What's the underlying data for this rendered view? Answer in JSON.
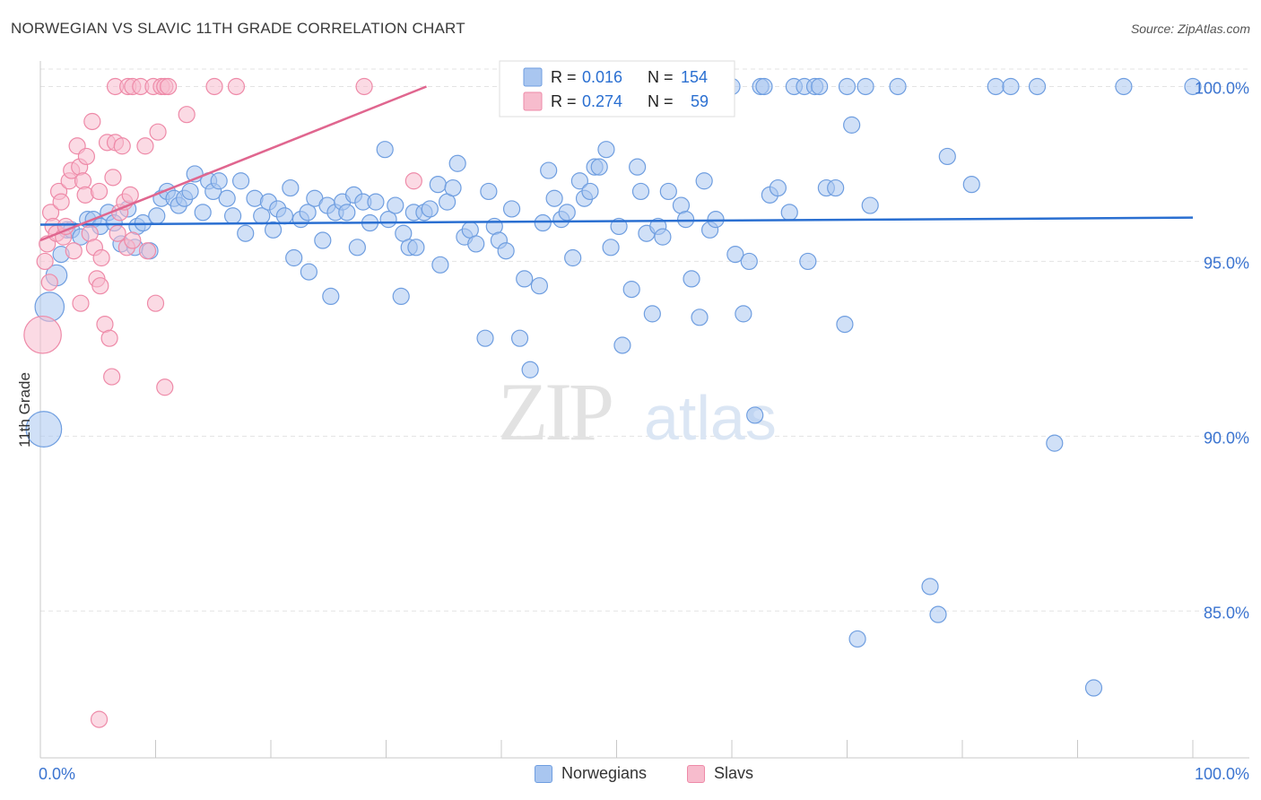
{
  "title": "NORWEGIAN VS SLAVIC 11TH GRADE CORRELATION CHART",
  "source": "Source: ZipAtlas.com",
  "watermark": {
    "zip": "ZIP",
    "atlas": "atlas"
  },
  "colors": {
    "norwegians_fill": "#a9c6f0",
    "norwegians_stroke": "#6f9ee0",
    "norwegians_line": "#2a6fd1",
    "slavs_fill": "#f7bccd",
    "slavs_stroke": "#ee8aa8",
    "slavs_line": "#e0668f",
    "tick_label": "#3b74d0",
    "grid": "#e3e3e3"
  },
  "stats_legend": {
    "rows": [
      {
        "r_label": "R =",
        "r_value": "0.016",
        "n_label": "N =",
        "n_value": "154"
      },
      {
        "r_label": "R =",
        "r_value": "0.274",
        "n_label": "N =",
        "n_value": "59"
      }
    ]
  },
  "legend_bottom": {
    "norwegians": "Norwegians",
    "slavs": "Slavs"
  },
  "chart_data": {
    "type": "scatter",
    "title": "NORWEGIAN VS SLAVIC 11TH GRADE CORRELATION CHART",
    "xlabel": "",
    "ylabel": "11th Grade",
    "xlim": [
      0,
      100
    ],
    "ylim": [
      80.8,
      100.5
    ],
    "x_tick_labels": [
      "0.0%",
      "100.0%"
    ],
    "y_ticks": [
      100,
      95,
      90,
      85
    ],
    "y_tick_labels": [
      "100.0%",
      "95.0%",
      "90.0%",
      "85.0%"
    ],
    "legend_position": "top-center",
    "series": [
      {
        "name": "Norwegians",
        "R": 0.016,
        "N": 154,
        "trend": {
          "x": [
            0,
            100
          ],
          "y": [
            96.05,
            96.25
          ]
        },
        "points": [
          {
            "x": 0.3,
            "y": 90.2,
            "s": 2.2
          },
          {
            "x": 0.8,
            "y": 93.7,
            "s": 1.8
          },
          {
            "x": 1.4,
            "y": 94.6,
            "s": 1.3
          },
          {
            "x": 1.8,
            "y": 95.2
          },
          {
            "x": 2.3,
            "y": 95.9
          },
          {
            "x": 2.7,
            "y": 95.9
          },
          {
            "x": 3.5,
            "y": 95.7
          },
          {
            "x": 4.1,
            "y": 96.2
          },
          {
            "x": 4.6,
            "y": 96.2
          },
          {
            "x": 5.2,
            "y": 96.0
          },
          {
            "x": 5.9,
            "y": 96.4
          },
          {
            "x": 6.4,
            "y": 96.1
          },
          {
            "x": 7.0,
            "y": 95.5
          },
          {
            "x": 7.6,
            "y": 96.5
          },
          {
            "x": 8.2,
            "y": 95.4
          },
          {
            "x": 8.4,
            "y": 96.0
          },
          {
            "x": 8.9,
            "y": 96.1
          },
          {
            "x": 9.5,
            "y": 95.3
          },
          {
            "x": 10.1,
            "y": 96.3
          },
          {
            "x": 10.5,
            "y": 96.8
          },
          {
            "x": 11.0,
            "y": 97.0
          },
          {
            "x": 11.6,
            "y": 96.8
          },
          {
            "x": 12.0,
            "y": 96.6
          },
          {
            "x": 12.5,
            "y": 96.8
          },
          {
            "x": 13.0,
            "y": 97.0
          },
          {
            "x": 13.4,
            "y": 97.5
          },
          {
            "x": 14.1,
            "y": 96.4
          },
          {
            "x": 14.6,
            "y": 97.3
          },
          {
            "x": 15.0,
            "y": 97.0
          },
          {
            "x": 15.5,
            "y": 97.3
          },
          {
            "x": 16.2,
            "y": 96.8
          },
          {
            "x": 16.7,
            "y": 96.3
          },
          {
            "x": 17.4,
            "y": 97.3
          },
          {
            "x": 17.8,
            "y": 95.8
          },
          {
            "x": 18.6,
            "y": 96.8
          },
          {
            "x": 19.2,
            "y": 96.3
          },
          {
            "x": 19.8,
            "y": 96.7
          },
          {
            "x": 20.2,
            "y": 95.9
          },
          {
            "x": 20.6,
            "y": 96.5
          },
          {
            "x": 21.2,
            "y": 96.3
          },
          {
            "x": 21.7,
            "y": 97.1
          },
          {
            "x": 22.0,
            "y": 95.1
          },
          {
            "x": 22.6,
            "y": 96.2
          },
          {
            "x": 23.3,
            "y": 94.7
          },
          {
            "x": 23.2,
            "y": 96.4
          },
          {
            "x": 23.8,
            "y": 96.8
          },
          {
            "x": 24.5,
            "y": 95.6
          },
          {
            "x": 24.9,
            "y": 96.6
          },
          {
            "x": 25.6,
            "y": 96.4
          },
          {
            "x": 25.2,
            "y": 94.0
          },
          {
            "x": 26.2,
            "y": 96.7
          },
          {
            "x": 26.6,
            "y": 96.4
          },
          {
            "x": 27.2,
            "y": 96.9
          },
          {
            "x": 27.5,
            "y": 95.4
          },
          {
            "x": 28.0,
            "y": 96.7
          },
          {
            "x": 28.6,
            "y": 96.1
          },
          {
            "x": 29.1,
            "y": 96.7
          },
          {
            "x": 29.9,
            "y": 98.2
          },
          {
            "x": 30.2,
            "y": 96.2
          },
          {
            "x": 30.8,
            "y": 96.6
          },
          {
            "x": 31.3,
            "y": 94.0
          },
          {
            "x": 31.5,
            "y": 95.8
          },
          {
            "x": 32.0,
            "y": 95.4
          },
          {
            "x": 32.6,
            "y": 95.4
          },
          {
            "x": 32.4,
            "y": 96.4
          },
          {
            "x": 33.3,
            "y": 96.4
          },
          {
            "x": 33.8,
            "y": 96.5
          },
          {
            "x": 34.5,
            "y": 97.2
          },
          {
            "x": 34.7,
            "y": 94.9
          },
          {
            "x": 35.3,
            "y": 96.7
          },
          {
            "x": 35.8,
            "y": 97.1
          },
          {
            "x": 36.2,
            "y": 97.8
          },
          {
            "x": 36.8,
            "y": 95.7
          },
          {
            "x": 37.3,
            "y": 95.9
          },
          {
            "x": 37.8,
            "y": 95.5
          },
          {
            "x": 38.6,
            "y": 92.8
          },
          {
            "x": 38.9,
            "y": 97.0
          },
          {
            "x": 39.4,
            "y": 96.0
          },
          {
            "x": 39.8,
            "y": 95.6
          },
          {
            "x": 40.4,
            "y": 95.3
          },
          {
            "x": 40.9,
            "y": 96.5
          },
          {
            "x": 41.6,
            "y": 92.8
          },
          {
            "x": 42.0,
            "y": 94.5
          },
          {
            "x": 42.5,
            "y": 91.9
          },
          {
            "x": 43.3,
            "y": 94.3
          },
          {
            "x": 43.6,
            "y": 96.1
          },
          {
            "x": 44.1,
            "y": 97.6
          },
          {
            "x": 44.6,
            "y": 96.8
          },
          {
            "x": 45.2,
            "y": 96.2
          },
          {
            "x": 45.7,
            "y": 96.4
          },
          {
            "x": 46.2,
            "y": 95.1
          },
          {
            "x": 46.8,
            "y": 97.3
          },
          {
            "x": 47.2,
            "y": 96.8
          },
          {
            "x": 47.7,
            "y": 97.0
          },
          {
            "x": 48.1,
            "y": 97.7
          },
          {
            "x": 48.5,
            "y": 97.7
          },
          {
            "x": 49.1,
            "y": 98.2
          },
          {
            "x": 49.5,
            "y": 95.4
          },
          {
            "x": 50.2,
            "y": 96.0
          },
          {
            "x": 50.5,
            "y": 92.6
          },
          {
            "x": 51.3,
            "y": 94.2
          },
          {
            "x": 51.8,
            "y": 97.7
          },
          {
            "x": 52.1,
            "y": 97.0
          },
          {
            "x": 52.6,
            "y": 95.8
          },
          {
            "x": 53.1,
            "y": 93.5
          },
          {
            "x": 53.6,
            "y": 96.0
          },
          {
            "x": 54.0,
            "y": 95.7
          },
          {
            "x": 54.5,
            "y": 97.0
          },
          {
            "x": 55.1,
            "y": 100.0
          },
          {
            "x": 55.6,
            "y": 96.6
          },
          {
            "x": 56.0,
            "y": 96.2
          },
          {
            "x": 56.5,
            "y": 94.5
          },
          {
            "x": 57.2,
            "y": 93.4
          },
          {
            "x": 57.6,
            "y": 97.3
          },
          {
            "x": 58.1,
            "y": 95.9
          },
          {
            "x": 58.6,
            "y": 96.2
          },
          {
            "x": 60.0,
            "y": 100.0
          },
          {
            "x": 60.3,
            "y": 95.2
          },
          {
            "x": 61.0,
            "y": 93.5
          },
          {
            "x": 61.5,
            "y": 95.0
          },
          {
            "x": 62.0,
            "y": 90.6
          },
          {
            "x": 62.5,
            "y": 100.0
          },
          {
            "x": 62.8,
            "y": 100.0
          },
          {
            "x": 63.3,
            "y": 96.9
          },
          {
            "x": 64.0,
            "y": 97.1
          },
          {
            "x": 65.0,
            "y": 96.4
          },
          {
            "x": 65.4,
            "y": 100.0
          },
          {
            "x": 66.3,
            "y": 100.0
          },
          {
            "x": 66.6,
            "y": 95.0
          },
          {
            "x": 67.2,
            "y": 100.0
          },
          {
            "x": 67.6,
            "y": 100.0
          },
          {
            "x": 68.2,
            "y": 97.1
          },
          {
            "x": 69.0,
            "y": 97.1
          },
          {
            "x": 69.8,
            "y": 93.2
          },
          {
            "x": 70.0,
            "y": 100.0
          },
          {
            "x": 70.4,
            "y": 98.9
          },
          {
            "x": 71.6,
            "y": 100.0
          },
          {
            "x": 72.0,
            "y": 96.6
          },
          {
            "x": 74.4,
            "y": 100.0
          },
          {
            "x": 77.2,
            "y": 85.7
          },
          {
            "x": 77.9,
            "y": 84.9
          },
          {
            "x": 78.7,
            "y": 98.0
          },
          {
            "x": 80.8,
            "y": 97.2
          },
          {
            "x": 82.9,
            "y": 100.0
          },
          {
            "x": 84.2,
            "y": 100.0
          },
          {
            "x": 86.5,
            "y": 100.0
          },
          {
            "x": 70.9,
            "y": 84.2
          },
          {
            "x": 88.0,
            "y": 89.8
          },
          {
            "x": 91.4,
            "y": 82.8
          },
          {
            "x": 94.0,
            "y": 100.0
          },
          {
            "x": 100.0,
            "y": 100.0
          }
        ]
      },
      {
        "name": "Slavs",
        "R": 0.274,
        "N": 59,
        "trend": {
          "x": [
            0,
            33.5
          ],
          "y": [
            95.6,
            100.0
          ]
        },
        "points": [
          {
            "x": 0.2,
            "y": 92.9,
            "s": 2.3
          },
          {
            "x": 0.4,
            "y": 95.0
          },
          {
            "x": 0.6,
            "y": 95.5
          },
          {
            "x": 0.8,
            "y": 94.4
          },
          {
            "x": 0.9,
            "y": 96.4
          },
          {
            "x": 1.1,
            "y": 96.0
          },
          {
            "x": 1.4,
            "y": 95.8
          },
          {
            "x": 1.6,
            "y": 97.0
          },
          {
            "x": 1.8,
            "y": 96.7
          },
          {
            "x": 2.0,
            "y": 95.7
          },
          {
            "x": 2.2,
            "y": 96.0
          },
          {
            "x": 2.5,
            "y": 97.3
          },
          {
            "x": 2.7,
            "y": 97.6
          },
          {
            "x": 2.9,
            "y": 95.3
          },
          {
            "x": 3.2,
            "y": 98.3
          },
          {
            "x": 3.4,
            "y": 97.7
          },
          {
            "x": 3.5,
            "y": 93.8
          },
          {
            "x": 3.7,
            "y": 97.3
          },
          {
            "x": 3.9,
            "y": 96.9
          },
          {
            "x": 4.0,
            "y": 98.0
          },
          {
            "x": 4.3,
            "y": 95.8
          },
          {
            "x": 4.5,
            "y": 99.0
          },
          {
            "x": 4.7,
            "y": 95.4
          },
          {
            "x": 4.9,
            "y": 94.5
          },
          {
            "x": 5.1,
            "y": 97.0
          },
          {
            "x": 5.2,
            "y": 94.3
          },
          {
            "x": 5.3,
            "y": 95.1
          },
          {
            "x": 5.6,
            "y": 93.2
          },
          {
            "x": 5.8,
            "y": 98.4
          },
          {
            "x": 6.0,
            "y": 92.8
          },
          {
            "x": 6.2,
            "y": 91.7
          },
          {
            "x": 6.3,
            "y": 97.4
          },
          {
            "x": 6.5,
            "y": 98.4
          },
          {
            "x": 6.7,
            "y": 95.8
          },
          {
            "x": 6.9,
            "y": 96.4
          },
          {
            "x": 7.1,
            "y": 98.3
          },
          {
            "x": 7.3,
            "y": 96.7
          },
          {
            "x": 7.5,
            "y": 95.4
          },
          {
            "x": 7.8,
            "y": 96.9
          },
          {
            "x": 8.0,
            "y": 95.6
          },
          {
            "x": 5.1,
            "y": 81.9
          },
          {
            "x": 6.5,
            "y": 100.0
          },
          {
            "x": 7.6,
            "y": 100.0
          },
          {
            "x": 8.0,
            "y": 100.0
          },
          {
            "x": 8.7,
            "y": 100.0
          },
          {
            "x": 9.1,
            "y": 98.3
          },
          {
            "x": 9.8,
            "y": 100.0
          },
          {
            "x": 9.3,
            "y": 95.3
          },
          {
            "x": 10.0,
            "y": 93.8
          },
          {
            "x": 10.2,
            "y": 98.7
          },
          {
            "x": 10.5,
            "y": 100.0
          },
          {
            "x": 10.8,
            "y": 100.0
          },
          {
            "x": 11.1,
            "y": 100.0
          },
          {
            "x": 10.8,
            "y": 91.4
          },
          {
            "x": 12.7,
            "y": 99.2
          },
          {
            "x": 15.1,
            "y": 100.0
          },
          {
            "x": 17.0,
            "y": 100.0
          },
          {
            "x": 28.1,
            "y": 100.0
          },
          {
            "x": 32.4,
            "y": 97.3
          }
        ]
      }
    ]
  }
}
